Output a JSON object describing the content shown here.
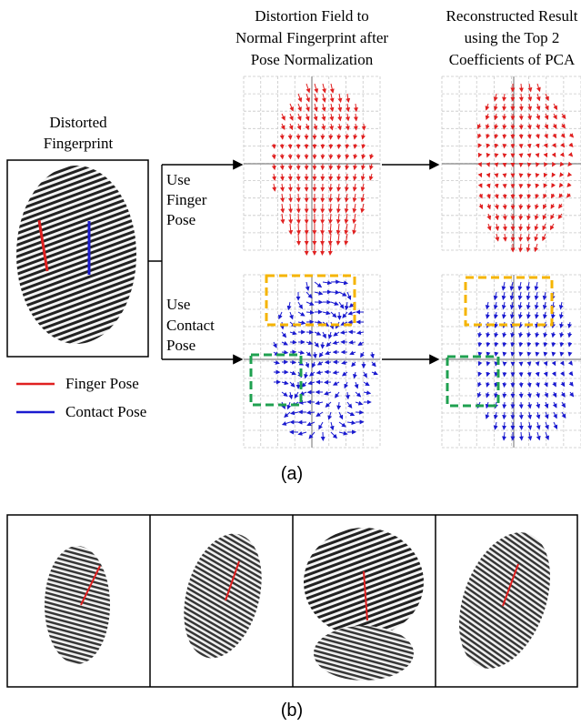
{
  "figure": {
    "part_a": {
      "col_headers": [
        [
          "Distortion Field to",
          "Normal Fingerprint after",
          "Pose Normalization"
        ],
        [
          "Reconstructed Result",
          "using the Top 2",
          "Coefficients of PCA"
        ]
      ],
      "input_label": [
        "Distorted",
        "Fingerprint"
      ],
      "row_labels": [
        [
          "Use",
          "Finger",
          "Pose"
        ],
        [
          "Use",
          "Contact",
          "Pose"
        ]
      ],
      "legend": [
        "Finger Pose",
        "Contact Pose"
      ],
      "caption": "(a)"
    },
    "part_b": {
      "caption": "(b)"
    }
  }
}
